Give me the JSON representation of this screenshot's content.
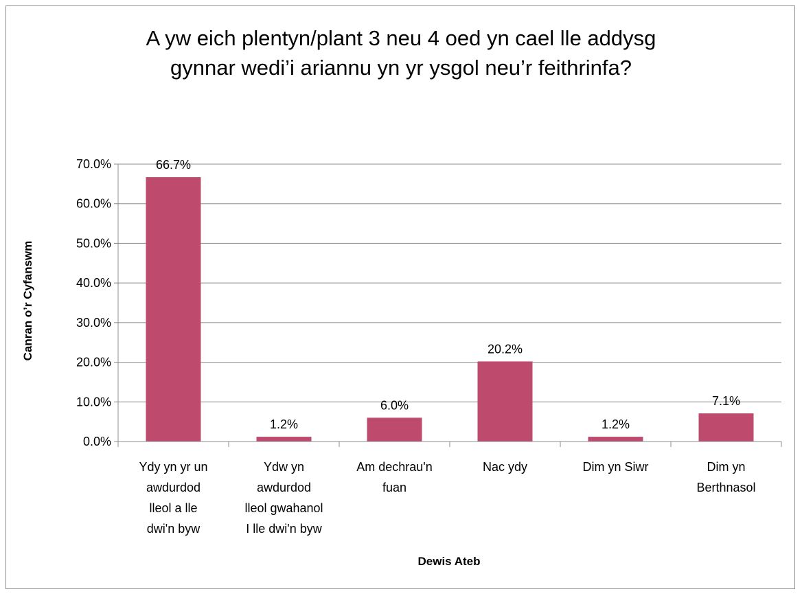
{
  "chart_data": {
    "type": "bar",
    "title_lines": [
      "A yw eich plentyn/plant 3 neu 4 oed yn cael lle addysg",
      "gynnar wedi’i ariannu yn yr ysgol neu’r feithrinfa?"
    ],
    "xlabel": "Dewis Ateb",
    "ylabel": "Canran o’r Cyfanswm",
    "ylim": [
      0,
      70
    ],
    "y_ticks": [
      0,
      10,
      20,
      30,
      40,
      50,
      60,
      70
    ],
    "y_tick_labels": [
      "0.0%",
      "10.0%",
      "20.0%",
      "30.0%",
      "40.0%",
      "50.0%",
      "60.0%",
      "70.0%"
    ],
    "categories": [
      [
        "Ydy yn yr un",
        "awdurdod",
        "lleol a lle",
        "dwi'n byw"
      ],
      [
        "Ydw yn",
        "awdurdod",
        "lleol gwahanol",
        "I lle dwi'n byw"
      ],
      [
        "Am dechrau'n",
        "fuan"
      ],
      [
        "Nac ydy"
      ],
      [
        "Dim yn Siwr"
      ],
      [
        "Dim yn",
        "Berthnasol"
      ]
    ],
    "values": [
      66.7,
      1.2,
      6.0,
      20.2,
      1.2,
      7.1
    ],
    "data_labels": [
      "66.7%",
      "1.2%",
      "6.0%",
      "20.2%",
      "1.2%",
      "7.1%"
    ],
    "grid": true,
    "legend": "none",
    "bar_color": "#be4b6e"
  }
}
